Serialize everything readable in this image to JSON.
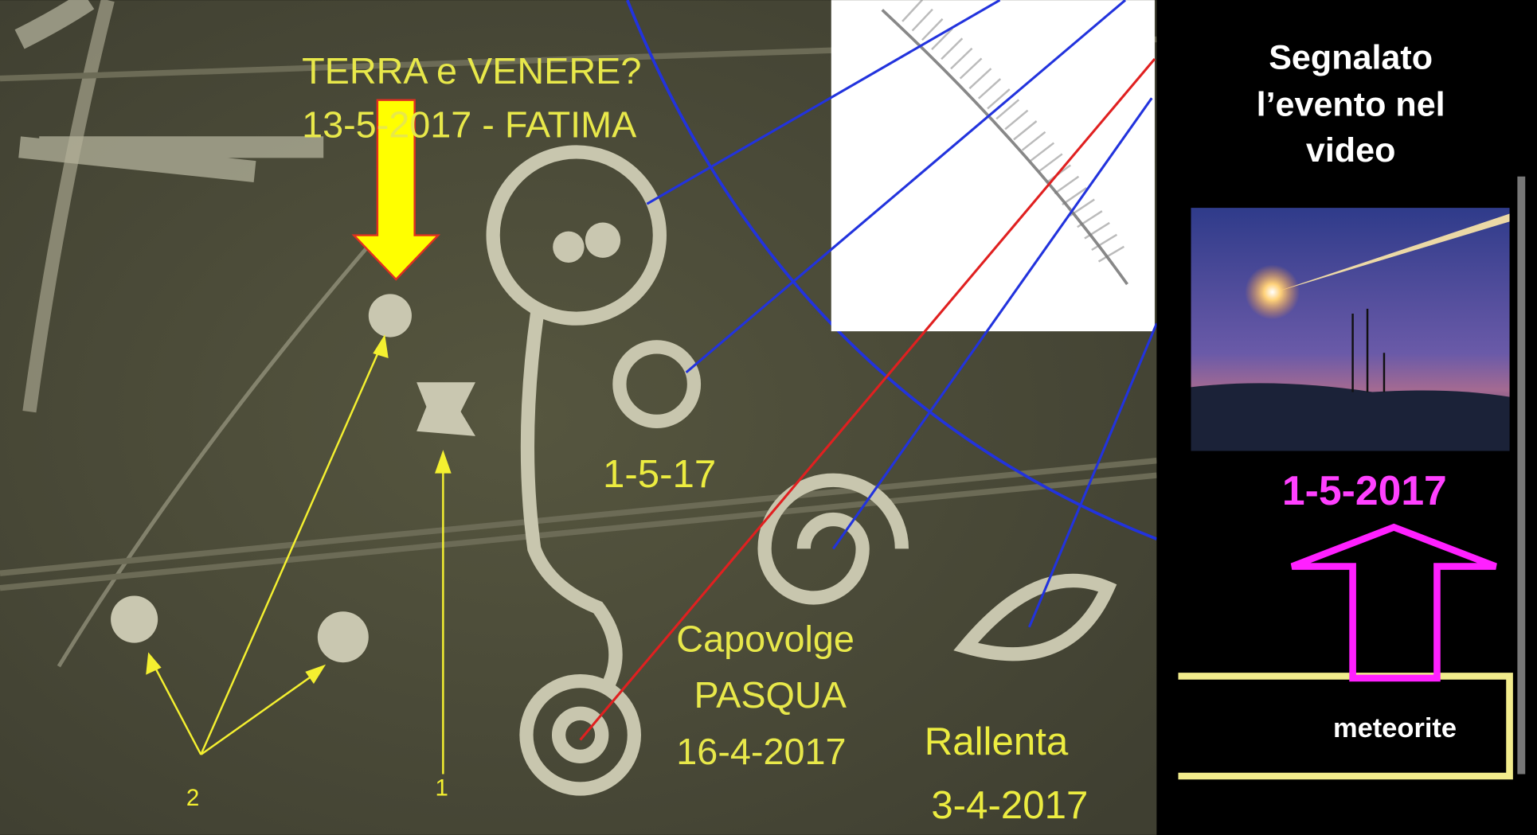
{
  "photo": {
    "labels": {
      "title_line1": "TERRA e VENERE?",
      "title_line2": "13-5-2017 - FATIMA",
      "date_1": "1-5-17",
      "pasqua_line1": "Capovolge",
      "pasqua_line2": "PASQUA",
      "pasqua_line3": "16-4-2017",
      "rallenta_line1": "Rallenta",
      "rallenta_line2": "3-4-2017",
      "marker_2": "2",
      "marker_1": "1"
    }
  },
  "sidebar": {
    "heading_line1": "Segnalato",
    "heading_line2": "l’evento nel",
    "heading_line3": "video",
    "date": "1-5-2017",
    "box_label": "meteorite"
  }
}
